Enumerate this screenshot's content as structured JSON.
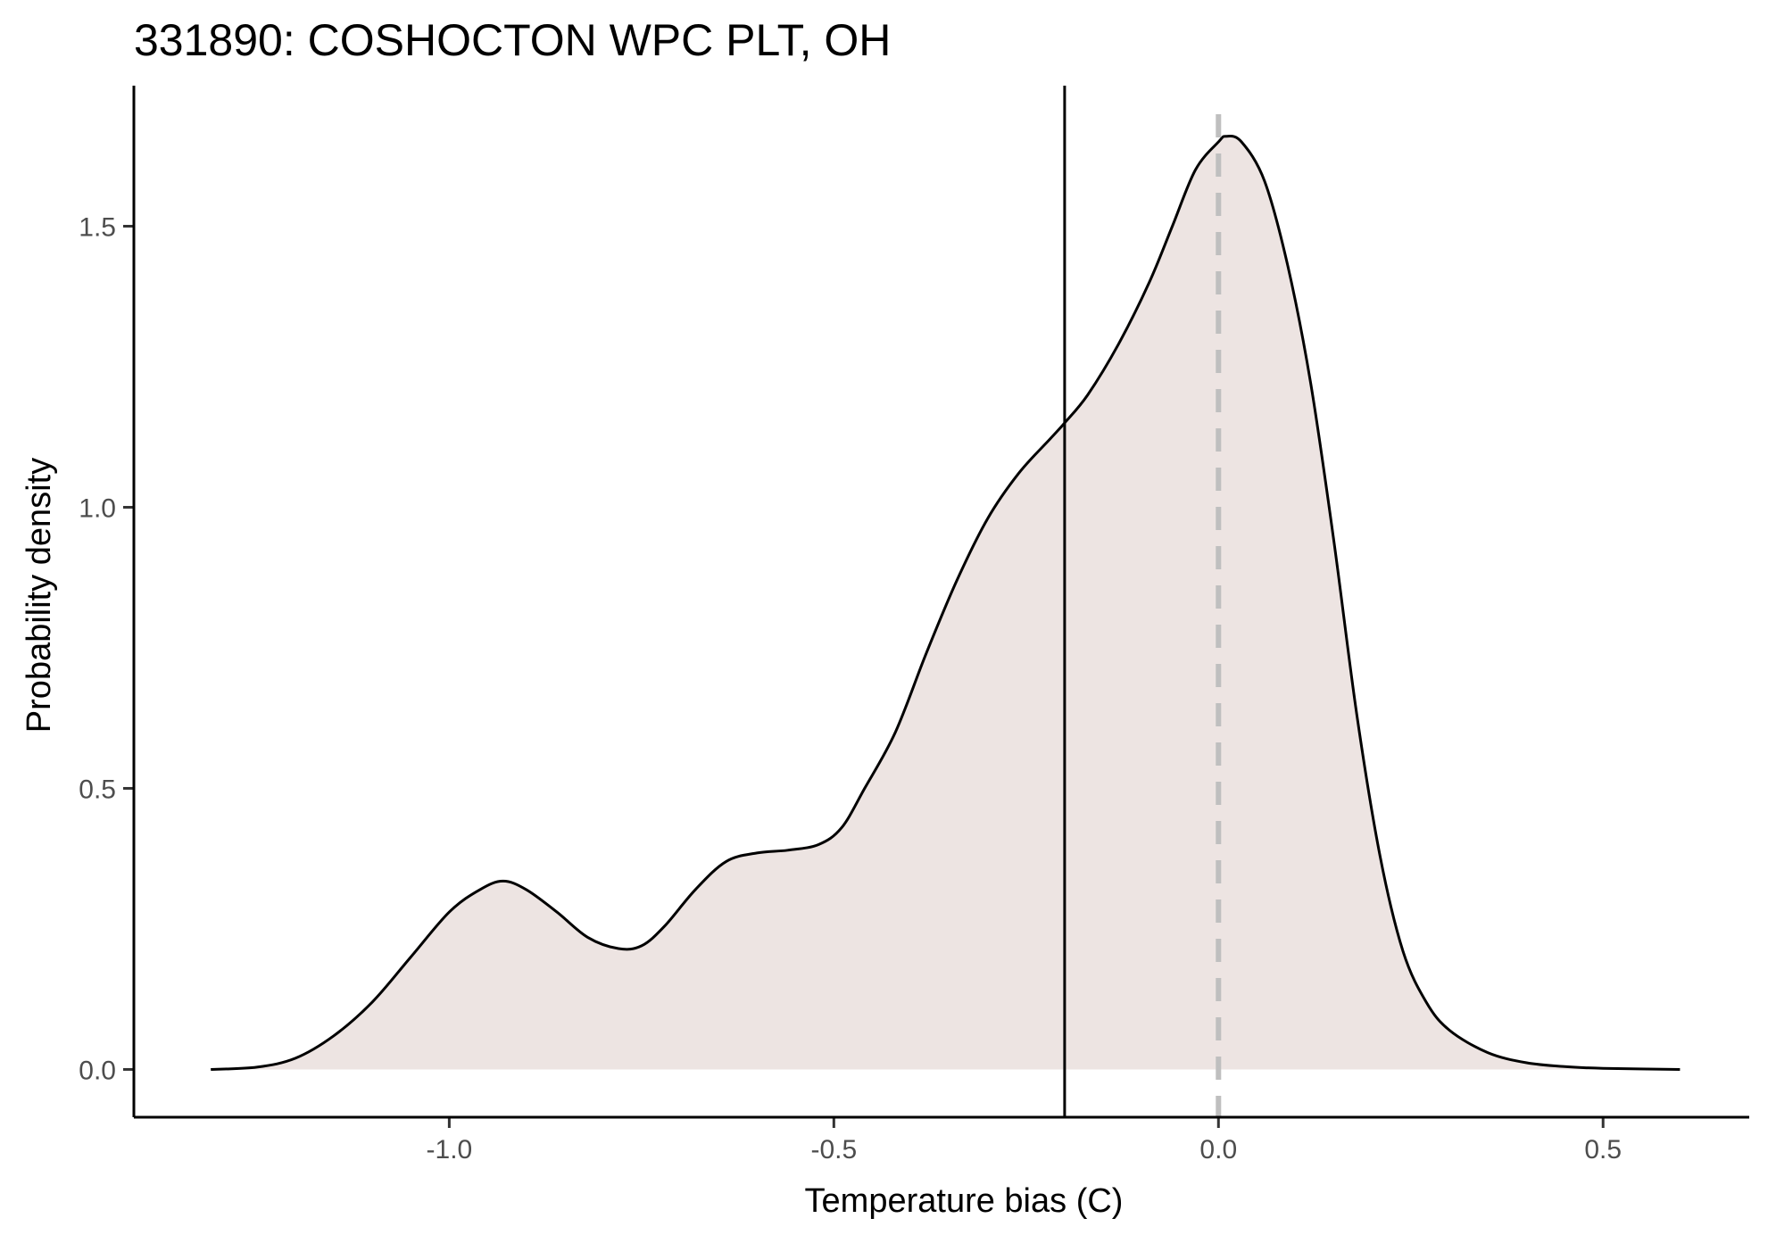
{
  "chart_data": {
    "type": "area",
    "title": "331890: COSHOCTON WPC PLT, OH",
    "xlabel": "Temperature bias (C)",
    "ylabel": "Probability density",
    "xlim": [
      -1.41,
      0.69
    ],
    "ylim": [
      -0.085,
      1.75
    ],
    "x_ticks": [
      -1.0,
      -0.5,
      0.0,
      0.5
    ],
    "x_tick_labels": [
      "-1.0",
      "-0.5",
      "0.0",
      "0.5"
    ],
    "y_ticks": [
      0.0,
      0.5,
      1.0,
      1.5
    ],
    "y_tick_labels": [
      "0.0",
      "0.5",
      "1.0",
      "1.5"
    ],
    "grid": false,
    "legend": "none",
    "fill_color": "#ede4e2",
    "line_color": "#000000",
    "series": [
      {
        "x": [
          -1.31,
          -1.25,
          -1.2,
          -1.15,
          -1.1,
          -1.05,
          -1.0,
          -0.96,
          -0.93,
          -0.9,
          -0.86,
          -0.82,
          -0.78,
          -0.75,
          -0.72,
          -0.68,
          -0.64,
          -0.6,
          -0.56,
          -0.52,
          -0.49,
          -0.46,
          -0.42,
          -0.38,
          -0.34,
          -0.3,
          -0.26,
          -0.22,
          -0.2,
          -0.17,
          -0.13,
          -0.09,
          -0.06,
          -0.03,
          0.0,
          0.01,
          0.03,
          0.06,
          0.09,
          0.12,
          0.15,
          0.18,
          0.21,
          0.24,
          0.27,
          0.3,
          0.35,
          0.4,
          0.45,
          0.5,
          0.6
        ],
        "y": [
          0.0,
          0.004,
          0.02,
          0.06,
          0.12,
          0.2,
          0.28,
          0.32,
          0.335,
          0.32,
          0.28,
          0.235,
          0.215,
          0.22,
          0.255,
          0.32,
          0.37,
          0.385,
          0.39,
          0.4,
          0.43,
          0.5,
          0.6,
          0.74,
          0.87,
          0.98,
          1.06,
          1.12,
          1.15,
          1.2,
          1.29,
          1.4,
          1.5,
          1.6,
          1.65,
          1.66,
          1.65,
          1.58,
          1.43,
          1.22,
          0.94,
          0.63,
          0.38,
          0.21,
          0.12,
          0.07,
          0.03,
          0.012,
          0.005,
          0.002,
          0.0
        ]
      }
    ],
    "vlines": [
      {
        "x": -0.2,
        "color": "#000000",
        "style": "solid"
      },
      {
        "x": 0.0,
        "color": "#bfbfbf",
        "style": "dashed"
      }
    ]
  }
}
